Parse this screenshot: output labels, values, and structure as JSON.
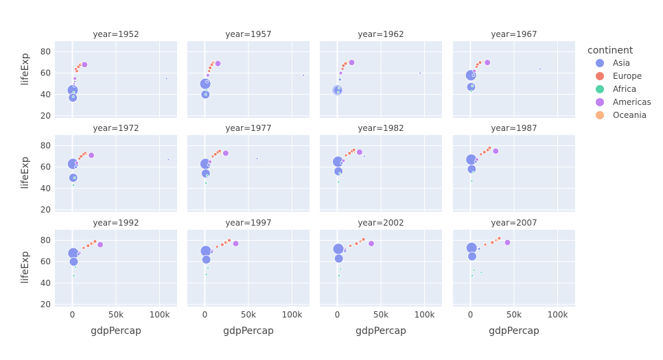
{
  "chart_data": {
    "type": "scatter",
    "subtype": "bubble-facets",
    "facet_columns": 4,
    "x_label": "gdpPercap",
    "y_label": "lifeExp",
    "xlim": [
      -20000,
      120000
    ],
    "ylim": [
      18,
      90
    ],
    "x_ticks": [
      0,
      50000,
      100000
    ],
    "x_tick_labels": [
      "0",
      "50k",
      "100k"
    ],
    "y_ticks": [
      20,
      40,
      60,
      80
    ],
    "y_tick_labels": [
      "20",
      "40",
      "60",
      "80"
    ],
    "grid": true,
    "legend": {
      "title": "continent",
      "placement": "right",
      "items": [
        {
          "name": "Asia",
          "color": "#8896f0"
        },
        {
          "name": "Europe",
          "color": "#ef7f6c"
        },
        {
          "name": "Africa",
          "color": "#53d3aa"
        },
        {
          "name": "Americas",
          "color": "#c183f2"
        },
        {
          "name": "Oceania",
          "color": "#fdb483"
        }
      ]
    },
    "facets": [
      {
        "title": "year=1952",
        "points": [
          {
            "c": 0,
            "x": 400,
            "y": 44,
            "s": 1.0
          },
          {
            "c": 0,
            "x": 600,
            "y": 37,
            "s": 0.8
          },
          {
            "c": 0,
            "x": 2000,
            "y": 48,
            "s": 0.25
          },
          {
            "c": 0,
            "x": 3000,
            "y": 52,
            "s": 0.2
          },
          {
            "c": 1,
            "x": 5000,
            "y": 62,
            "s": 0.3
          },
          {
            "c": 1,
            "x": 7000,
            "y": 66,
            "s": 0.3
          },
          {
            "c": 1,
            "x": 9000,
            "y": 68,
            "s": 0.3
          },
          {
            "c": 1,
            "x": 4000,
            "y": 64,
            "s": 0.25
          },
          {
            "c": 3,
            "x": 14000,
            "y": 68,
            "s": 0.55
          },
          {
            "c": 3,
            "x": 3000,
            "y": 55,
            "s": 0.3
          },
          {
            "c": 3,
            "x": 2000,
            "y": 50,
            "s": 0.2
          },
          {
            "c": 2,
            "x": 1000,
            "y": 38,
            "s": 0.15
          },
          {
            "c": 2,
            "x": 1500,
            "y": 42,
            "s": 0.15
          },
          {
            "c": 4,
            "x": 10000,
            "y": 69,
            "s": 0.15
          },
          {
            "c": 0,
            "x": 108000,
            "y": 55,
            "s": 0.1
          }
        ]
      },
      {
        "title": "year=1957",
        "points": [
          {
            "c": 0,
            "x": 500,
            "y": 50,
            "s": 1.0
          },
          {
            "c": 0,
            "x": 700,
            "y": 40,
            "s": 0.8
          },
          {
            "c": 0,
            "x": 2500,
            "y": 52,
            "s": 0.25
          },
          {
            "c": 1,
            "x": 6000,
            "y": 65,
            "s": 0.3
          },
          {
            "c": 1,
            "x": 8000,
            "y": 68,
            "s": 0.3
          },
          {
            "c": 1,
            "x": 5000,
            "y": 62,
            "s": 0.25
          },
          {
            "c": 1,
            "x": 10000,
            "y": 70,
            "s": 0.3
          },
          {
            "c": 3,
            "x": 15000,
            "y": 69,
            "s": 0.55
          },
          {
            "c": 3,
            "x": 3500,
            "y": 58,
            "s": 0.3
          },
          {
            "c": 2,
            "x": 1000,
            "y": 40,
            "s": 0.15
          },
          {
            "c": 2,
            "x": 1800,
            "y": 44,
            "s": 0.15
          },
          {
            "c": 4,
            "x": 11000,
            "y": 70,
            "s": 0.15
          },
          {
            "c": 0,
            "x": 113000,
            "y": 58,
            "s": 0.1
          }
        ]
      },
      {
        "title": "year=1962",
        "points": [
          {
            "c": 0,
            "x": 500,
            "y": 44,
            "s": 1.0
          },
          {
            "c": 0,
            "x": 800,
            "y": 44,
            "s": 0.8
          },
          {
            "c": 0,
            "x": 3000,
            "y": 54,
            "s": 0.25
          },
          {
            "c": 1,
            "x": 7000,
            "y": 67,
            "s": 0.3
          },
          {
            "c": 1,
            "x": 9500,
            "y": 69,
            "s": 0.3
          },
          {
            "c": 1,
            "x": 6000,
            "y": 64,
            "s": 0.25
          },
          {
            "c": 3,
            "x": 16500,
            "y": 70,
            "s": 0.55
          },
          {
            "c": 3,
            "x": 4000,
            "y": 60,
            "s": 0.3
          },
          {
            "c": 2,
            "x": 1100,
            "y": 42,
            "s": 0.15
          },
          {
            "c": 2,
            "x": 2000,
            "y": 46,
            "s": 0.15
          },
          {
            "c": 4,
            "x": 12500,
            "y": 71,
            "s": 0.15
          },
          {
            "c": 0,
            "x": 95000,
            "y": 60,
            "s": 0.1
          }
        ]
      },
      {
        "title": "year=1967",
        "points": [
          {
            "c": 0,
            "x": 600,
            "y": 58,
            "s": 1.0
          },
          {
            "c": 0,
            "x": 800,
            "y": 47,
            "s": 0.8
          },
          {
            "c": 0,
            "x": 3500,
            "y": 58,
            "s": 0.25
          },
          {
            "c": 1,
            "x": 8000,
            "y": 68,
            "s": 0.3
          },
          {
            "c": 1,
            "x": 11000,
            "y": 70,
            "s": 0.3
          },
          {
            "c": 1,
            "x": 7000,
            "y": 66,
            "s": 0.25
          },
          {
            "c": 3,
            "x": 19500,
            "y": 70,
            "s": 0.55
          },
          {
            "c": 3,
            "x": 4500,
            "y": 62,
            "s": 0.3
          },
          {
            "c": 2,
            "x": 1200,
            "y": 43,
            "s": 0.15
          },
          {
            "c": 2,
            "x": 2200,
            "y": 48,
            "s": 0.15
          },
          {
            "c": 4,
            "x": 14500,
            "y": 71,
            "s": 0.15
          },
          {
            "c": 0,
            "x": 80000,
            "y": 64,
            "s": 0.1
          }
        ]
      },
      {
        "title": "year=1972",
        "points": [
          {
            "c": 0,
            "x": 700,
            "y": 63,
            "s": 1.0
          },
          {
            "c": 0,
            "x": 1000,
            "y": 50,
            "s": 0.8
          },
          {
            "c": 0,
            "x": 4000,
            "y": 60,
            "s": 0.25
          },
          {
            "c": 1,
            "x": 10000,
            "y": 70,
            "s": 0.3
          },
          {
            "c": 1,
            "x": 13000,
            "y": 72,
            "s": 0.3
          },
          {
            "c": 1,
            "x": 8000,
            "y": 68,
            "s": 0.25
          },
          {
            "c": 1,
            "x": 15000,
            "y": 73,
            "s": 0.3
          },
          {
            "c": 3,
            "x": 21800,
            "y": 71,
            "s": 0.55
          },
          {
            "c": 3,
            "x": 5000,
            "y": 64,
            "s": 0.3
          },
          {
            "c": 2,
            "x": 1300,
            "y": 43,
            "s": 0.2
          },
          {
            "c": 2,
            "x": 2500,
            "y": 50,
            "s": 0.15
          },
          {
            "c": 4,
            "x": 16500,
            "y": 72,
            "s": 0.15
          },
          {
            "c": 0,
            "x": 110000,
            "y": 67,
            "s": 0.1
          }
        ]
      },
      {
        "title": "year=1977",
        "points": [
          {
            "c": 0,
            "x": 800,
            "y": 63,
            "s": 1.0
          },
          {
            "c": 0,
            "x": 1100,
            "y": 54,
            "s": 0.8
          },
          {
            "c": 0,
            "x": 4500,
            "y": 62,
            "s": 0.25
          },
          {
            "c": 1,
            "x": 12000,
            "y": 72,
            "s": 0.3
          },
          {
            "c": 1,
            "x": 15000,
            "y": 74,
            "s": 0.3
          },
          {
            "c": 1,
            "x": 9000,
            "y": 70,
            "s": 0.25
          },
          {
            "c": 1,
            "x": 17000,
            "y": 75,
            "s": 0.3
          },
          {
            "c": 3,
            "x": 24000,
            "y": 73,
            "s": 0.55
          },
          {
            "c": 3,
            "x": 6000,
            "y": 65,
            "s": 0.3
          },
          {
            "c": 2,
            "x": 1400,
            "y": 45,
            "s": 0.2
          },
          {
            "c": 2,
            "x": 2700,
            "y": 52,
            "s": 0.15
          },
          {
            "c": 4,
            "x": 18000,
            "y": 73,
            "s": 0.15
          },
          {
            "c": 0,
            "x": 60000,
            "y": 68,
            "s": 0.1
          }
        ]
      },
      {
        "title": "year=1982",
        "points": [
          {
            "c": 0,
            "x": 900,
            "y": 65,
            "s": 1.0
          },
          {
            "c": 0,
            "x": 1300,
            "y": 56,
            "s": 0.8
          },
          {
            "c": 0,
            "x": 5000,
            "y": 64,
            "s": 0.25
          },
          {
            "c": 1,
            "x": 14000,
            "y": 73,
            "s": 0.3
          },
          {
            "c": 1,
            "x": 17000,
            "y": 75,
            "s": 0.3
          },
          {
            "c": 1,
            "x": 10000,
            "y": 71,
            "s": 0.25
          },
          {
            "c": 1,
            "x": 19000,
            "y": 76,
            "s": 0.3
          },
          {
            "c": 3,
            "x": 25500,
            "y": 74,
            "s": 0.55
          },
          {
            "c": 3,
            "x": 7000,
            "y": 66,
            "s": 0.3
          },
          {
            "c": 2,
            "x": 1500,
            "y": 46,
            "s": 0.2
          },
          {
            "c": 2,
            "x": 3000,
            "y": 54,
            "s": 0.15
          },
          {
            "c": 4,
            "x": 20000,
            "y": 74,
            "s": 0.15
          },
          {
            "c": 0,
            "x": 31000,
            "y": 70,
            "s": 0.1
          }
        ]
      },
      {
        "title": "year=1987",
        "points": [
          {
            "c": 0,
            "x": 1000,
            "y": 67,
            "s": 1.0
          },
          {
            "c": 0,
            "x": 1500,
            "y": 58,
            "s": 0.8
          },
          {
            "c": 0,
            "x": 6000,
            "y": 65,
            "s": 0.25
          },
          {
            "c": 1,
            "x": 16000,
            "y": 74,
            "s": 0.3
          },
          {
            "c": 1,
            "x": 20000,
            "y": 76,
            "s": 0.3
          },
          {
            "c": 1,
            "x": 12000,
            "y": 72,
            "s": 0.25
          },
          {
            "c": 1,
            "x": 22000,
            "y": 78,
            "s": 0.3
          },
          {
            "c": 3,
            "x": 29000,
            "y": 75,
            "s": 0.55
          },
          {
            "c": 3,
            "x": 7500,
            "y": 67,
            "s": 0.3
          },
          {
            "c": 2,
            "x": 1600,
            "y": 47,
            "s": 0.2
          },
          {
            "c": 2,
            "x": 3200,
            "y": 55,
            "s": 0.15
          },
          {
            "c": 4,
            "x": 22500,
            "y": 76,
            "s": 0.15
          }
        ]
      },
      {
        "title": "year=1992",
        "points": [
          {
            "c": 0,
            "x": 1100,
            "y": 68,
            "s": 1.0
          },
          {
            "c": 0,
            "x": 1600,
            "y": 60,
            "s": 0.8
          },
          {
            "c": 0,
            "x": 7000,
            "y": 67,
            "s": 0.25
          },
          {
            "c": 1,
            "x": 18000,
            "y": 75,
            "s": 0.3
          },
          {
            "c": 1,
            "x": 22000,
            "y": 77,
            "s": 0.3
          },
          {
            "c": 1,
            "x": 13000,
            "y": 73,
            "s": 0.25
          },
          {
            "c": 1,
            "x": 26000,
            "y": 79,
            "s": 0.3
          },
          {
            "c": 3,
            "x": 32000,
            "y": 76,
            "s": 0.55
          },
          {
            "c": 3,
            "x": 8000,
            "y": 68,
            "s": 0.3
          },
          {
            "c": 2,
            "x": 1700,
            "y": 47,
            "s": 0.2
          },
          {
            "c": 2,
            "x": 3400,
            "y": 55,
            "s": 0.15
          },
          {
            "c": 4,
            "x": 24000,
            "y": 77,
            "s": 0.15
          }
        ]
      },
      {
        "title": "year=1997",
        "points": [
          {
            "c": 0,
            "x": 1200,
            "y": 70,
            "s": 1.0
          },
          {
            "c": 0,
            "x": 1700,
            "y": 62,
            "s": 0.8
          },
          {
            "c": 0,
            "x": 8000,
            "y": 69,
            "s": 0.25
          },
          {
            "c": 1,
            "x": 20000,
            "y": 76,
            "s": 0.3
          },
          {
            "c": 1,
            "x": 24000,
            "y": 78,
            "s": 0.3
          },
          {
            "c": 1,
            "x": 14000,
            "y": 74,
            "s": 0.25
          },
          {
            "c": 1,
            "x": 28000,
            "y": 80,
            "s": 0.3
          },
          {
            "c": 3,
            "x": 35500,
            "y": 77,
            "s": 0.55
          },
          {
            "c": 3,
            "x": 8500,
            "y": 70,
            "s": 0.3
          },
          {
            "c": 2,
            "x": 1800,
            "y": 48,
            "s": 0.2
          },
          {
            "c": 2,
            "x": 3600,
            "y": 54,
            "s": 0.15
          },
          {
            "c": 4,
            "x": 26000,
            "y": 78,
            "s": 0.15
          }
        ]
      },
      {
        "title": "year=2002",
        "points": [
          {
            "c": 0,
            "x": 1300,
            "y": 72,
            "s": 1.0
          },
          {
            "c": 0,
            "x": 1800,
            "y": 63,
            "s": 0.8
          },
          {
            "c": 0,
            "x": 9000,
            "y": 70,
            "s": 0.25
          },
          {
            "c": 1,
            "x": 22000,
            "y": 77,
            "s": 0.3
          },
          {
            "c": 1,
            "x": 27000,
            "y": 79,
            "s": 0.3
          },
          {
            "c": 1,
            "x": 15000,
            "y": 75,
            "s": 0.25
          },
          {
            "c": 1,
            "x": 30000,
            "y": 81,
            "s": 0.3
          },
          {
            "c": 3,
            "x": 39000,
            "y": 77,
            "s": 0.55
          },
          {
            "c": 3,
            "x": 9000,
            "y": 71,
            "s": 0.3
          },
          {
            "c": 2,
            "x": 1900,
            "y": 47,
            "s": 0.2
          },
          {
            "c": 2,
            "x": 3800,
            "y": 53,
            "s": 0.15
          },
          {
            "c": 4,
            "x": 28000,
            "y": 79,
            "s": 0.15
          }
        ]
      },
      {
        "title": "year=2007",
        "points": [
          {
            "c": 0,
            "x": 1400,
            "y": 73,
            "s": 1.0
          },
          {
            "c": 0,
            "x": 2000,
            "y": 65,
            "s": 0.8
          },
          {
            "c": 0,
            "x": 10000,
            "y": 72,
            "s": 0.25
          },
          {
            "c": 1,
            "x": 25000,
            "y": 78,
            "s": 0.3
          },
          {
            "c": 1,
            "x": 30000,
            "y": 80,
            "s": 0.3
          },
          {
            "c": 1,
            "x": 17000,
            "y": 76,
            "s": 0.25
          },
          {
            "c": 1,
            "x": 33000,
            "y": 82,
            "s": 0.3
          },
          {
            "c": 3,
            "x": 42500,
            "y": 78,
            "s": 0.55
          },
          {
            "c": 3,
            "x": 10000,
            "y": 72,
            "s": 0.3
          },
          {
            "c": 2,
            "x": 2000,
            "y": 47,
            "s": 0.2
          },
          {
            "c": 2,
            "x": 4000,
            "y": 52,
            "s": 0.15
          },
          {
            "c": 2,
            "x": 12500,
            "y": 50,
            "s": 0.1
          },
          {
            "c": 4,
            "x": 31000,
            "y": 80,
            "s": 0.15
          }
        ]
      }
    ]
  }
}
